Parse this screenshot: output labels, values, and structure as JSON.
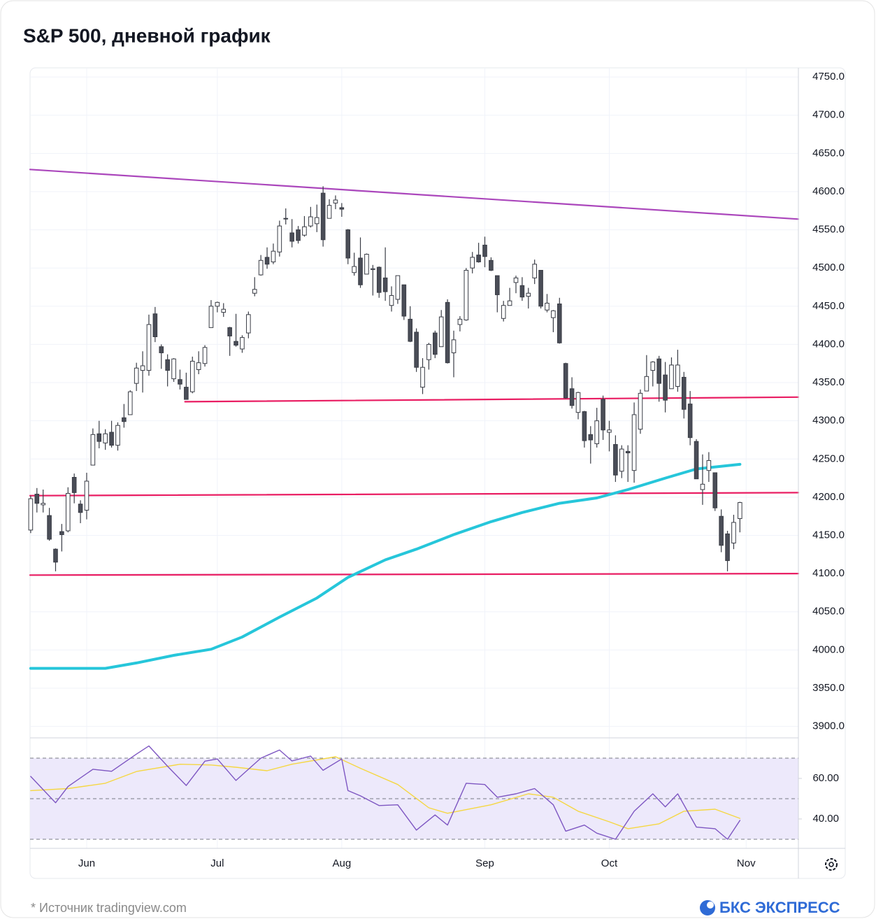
{
  "chart_data": {
    "type": "candlestick",
    "title": "S&P 500, дневной график",
    "source": "*  Источник tradingview.com",
    "brand": "БКС ЭКСПРЕСС",
    "xlim": [
      -0.1,
      123.4
    ],
    "xticks": [
      {
        "value": 9,
        "label": "Jun"
      },
      {
        "value": 30,
        "label": "Jul"
      },
      {
        "value": 50,
        "label": "Aug"
      },
      {
        "value": 73,
        "label": "Sep"
      },
      {
        "value": 93,
        "label": "Oct"
      },
      {
        "value": 115,
        "label": "Nov"
      }
    ],
    "ylim": [
      3885,
      4762
    ],
    "yticks": [
      {
        "value": 3900,
        "label": "3900.0"
      },
      {
        "value": 3950,
        "label": "3950.0"
      },
      {
        "value": 4000,
        "label": "4000.0"
      },
      {
        "value": 4050,
        "label": "4050.0"
      },
      {
        "value": 4100,
        "label": "4100.0"
      },
      {
        "value": 4150,
        "label": "4150.0"
      },
      {
        "value": 4200,
        "label": "4200.0"
      },
      {
        "value": 4250,
        "label": "4250.0"
      },
      {
        "value": 4300,
        "label": "4300.0"
      },
      {
        "value": 4350,
        "label": "4350.0"
      },
      {
        "value": 4400,
        "label": "4400.0"
      },
      {
        "value": 4450,
        "label": "4450.0"
      },
      {
        "value": 4500,
        "label": "4500.0"
      },
      {
        "value": 4550,
        "label": "4550.0"
      },
      {
        "value": 4600,
        "label": "4600.0"
      },
      {
        "value": 4650,
        "label": "4650.0"
      },
      {
        "value": 4700,
        "label": "4700.0"
      },
      {
        "value": 4750,
        "label": "4750.0"
      }
    ],
    "grid": true,
    "up_color": "#ffffff",
    "down_color": "#4a4d57",
    "outline_color": "#3a3d46",
    "ohlc": [
      [
        4157,
        4202,
        4153,
        4198
      ],
      [
        4204,
        4212,
        4180,
        4192
      ],
      [
        4190,
        4210,
        4180,
        4192
      ],
      [
        4176,
        4186,
        4143,
        4145
      ],
      [
        4132,
        4133,
        4103,
        4115
      ],
      [
        4155,
        4165,
        4129,
        4151
      ],
      [
        4156,
        4213,
        4154,
        4205
      ],
      [
        4226,
        4231,
        4192,
        4206
      ],
      [
        4191,
        4196,
        4166,
        4180
      ],
      [
        4183,
        4232,
        4171,
        4221
      ],
      [
        4242,
        4290,
        4242,
        4282
      ],
      [
        4283,
        4300,
        4264,
        4273
      ],
      [
        4271,
        4289,
        4262,
        4283
      ],
      [
        4285,
        4300,
        4265,
        4268
      ],
      [
        4268,
        4298,
        4261,
        4294
      ],
      [
        4304,
        4322,
        4291,
        4299
      ],
      [
        4308,
        4340,
        4308,
        4338
      ],
      [
        4349,
        4376,
        4339,
        4369
      ],
      [
        4366,
        4391,
        4337,
        4372
      ],
      [
        4366,
        4439,
        4359,
        4426
      ],
      [
        4440,
        4449,
        4403,
        4410
      ],
      [
        4397,
        4400,
        4368,
        4389
      ],
      [
        4380,
        4387,
        4345,
        4366
      ],
      [
        4355,
        4382,
        4351,
        4381
      ],
      [
        4354,
        4367,
        4341,
        4348
      ],
      [
        4344,
        4363,
        4328,
        4328
      ],
      [
        4338,
        4384,
        4336,
        4378
      ],
      [
        4367,
        4391,
        4361,
        4376
      ],
      [
        4375,
        4399,
        4371,
        4396
      ],
      [
        4422,
        4458,
        4422,
        4450
      ],
      [
        4450,
        4456,
        4442,
        4455
      ],
      [
        4442,
        4454,
        4436,
        4446
      ],
      [
        4422,
        4423,
        4385,
        4411
      ],
      [
        4404,
        4440,
        4397,
        4399
      ],
      [
        4394,
        4412,
        4389,
        4409
      ],
      [
        4415,
        4443,
        4408,
        4439
      ],
      [
        4467,
        4488,
        4463,
        4472
      ],
      [
        4491,
        4517,
        4490,
        4510
      ],
      [
        4514,
        4527,
        4499,
        4505
      ],
      [
        4508,
        4532,
        4505,
        4522
      ],
      [
        4521,
        4562,
        4515,
        4555
      ],
      [
        4565,
        4578,
        4557,
        4565
      ],
      [
        4546,
        4564,
        4527,
        4535
      ],
      [
        4550,
        4555,
        4532,
        4536
      ],
      [
        4543,
        4568,
        4541,
        4554
      ],
      [
        4555,
        4580,
        4553,
        4567
      ],
      [
        4558,
        4583,
        4547,
        4566
      ],
      [
        4598,
        4607,
        4528,
        4537
      ],
      [
        4565,
        4590,
        4565,
        4582
      ],
      [
        4585,
        4595,
        4577,
        4589
      ],
      [
        4579,
        4585,
        4567,
        4577
      ],
      [
        4550,
        4551,
        4505,
        4513
      ],
      [
        4494,
        4520,
        4490,
        4502
      ],
      [
        4513,
        4540,
        4474,
        4478
      ],
      [
        4492,
        4519,
        4492,
        4518
      ],
      [
        4498,
        4504,
        4464,
        4499
      ],
      [
        4501,
        4502,
        4461,
        4468
      ],
      [
        4487,
        4527,
        4457,
        4469
      ],
      [
        4451,
        4476,
        4443,
        4464
      ],
      [
        4459,
        4490,
        4453,
        4490
      ],
      [
        4478,
        4478,
        4432,
        4437
      ],
      [
        4433,
        4450,
        4403,
        4404
      ],
      [
        4416,
        4421,
        4364,
        4370
      ],
      [
        4344,
        4382,
        4335,
        4370
      ],
      [
        4380,
        4402,
        4367,
        4400
      ],
      [
        4415,
        4418,
        4382,
        4387
      ],
      [
        4397,
        4445,
        4397,
        4436
      ],
      [
        4455,
        4459,
        4375,
        4376
      ],
      [
        4389,
        4418,
        4357,
        4406
      ],
      [
        4426,
        4437,
        4417,
        4433
      ],
      [
        4432,
        4500,
        4431,
        4497
      ],
      [
        4500,
        4521,
        4493,
        4514
      ],
      [
        4517,
        4533,
        4507,
        4508
      ],
      [
        4530,
        4541,
        4501,
        4515
      ],
      [
        4510,
        4514,
        4496,
        4497
      ],
      [
        4490,
        4490,
        4442,
        4465
      ],
      [
        4434,
        4457,
        4430,
        4451
      ],
      [
        4451,
        4474,
        4451,
        4457
      ],
      [
        4481,
        4490,
        4467,
        4487
      ],
      [
        4477,
        4488,
        4457,
        4462
      ],
      [
        4463,
        4474,
        4447,
        4467
      ],
      [
        4487,
        4511,
        4479,
        4505
      ],
      [
        4497,
        4497,
        4447,
        4450
      ],
      [
        4445,
        4466,
        4442,
        4454
      ],
      [
        4435,
        4445,
        4416,
        4444
      ],
      [
        4453,
        4461,
        4401,
        4402
      ],
      [
        4375,
        4376,
        4329,
        4330
      ],
      [
        4342,
        4357,
        4316,
        4320
      ],
      [
        4311,
        4338,
        4302,
        4337
      ],
      [
        4312,
        4313,
        4265,
        4274
      ],
      [
        4282,
        4293,
        4244,
        4275
      ],
      [
        4270,
        4317,
        4265,
        4300
      ],
      [
        4328,
        4333,
        4275,
        4288
      ],
      [
        4285,
        4300,
        4260,
        4288
      ],
      [
        4269,
        4281,
        4220,
        4229
      ],
      [
        4234,
        4268,
        4225,
        4263
      ],
      [
        4260,
        4268,
        4220,
        4258
      ],
      [
        4235,
        4324,
        4219,
        4308
      ],
      [
        4289,
        4341,
        4283,
        4336
      ],
      [
        4339,
        4386,
        4339,
        4358
      ],
      [
        4366,
        4378,
        4345,
        4377
      ],
      [
        4381,
        4385,
        4325,
        4349
      ],
      [
        4360,
        4377,
        4311,
        4327
      ],
      [
        4342,
        4383,
        4342,
        4373
      ],
      [
        4345,
        4393,
        4338,
        4373
      ],
      [
        4357,
        4364,
        4303,
        4315
      ],
      [
        4322,
        4339,
        4268,
        4278
      ],
      [
        4273,
        4276,
        4224,
        4224
      ],
      [
        4210,
        4256,
        4190,
        4217
      ],
      [
        4235,
        4259,
        4220,
        4248
      ],
      [
        4232,
        4232,
        4182,
        4186
      ],
      [
        4175,
        4184,
        4128,
        4137
      ],
      [
        4152,
        4156,
        4103,
        4117
      ],
      [
        4140,
        4177,
        4132,
        4167
      ],
      [
        4172,
        4194,
        4154,
        4193
      ]
    ],
    "overlays": [
      {
        "color": "#26c6da",
        "width": 4,
        "x": [
          0,
          9,
          12,
          17,
          23,
          29,
          34,
          40,
          46,
          51,
          57,
          62,
          68,
          74,
          79,
          85,
          91,
          96,
          102,
          107,
          114
        ],
        "values": [
          3976,
          3976,
          3976,
          3983,
          3993,
          4001,
          4017,
          4043,
          4068,
          4095,
          4118,
          4132,
          4151,
          4168,
          4180,
          4192,
          4199,
          4210,
          4225,
          4237,
          4243
        ]
      }
    ],
    "trendlines": [
      {
        "color": "#ab47bc",
        "x": [
          -0.1,
          123.4
        ],
        "values": [
          4629,
          4564
        ]
      },
      {
        "color": "#e91e63",
        "x": [
          24.8,
          123.4
        ],
        "values": [
          4325,
          4331
        ]
      },
      {
        "color": "#e91e63",
        "x": [
          -0.1,
          123.4
        ],
        "values": [
          4202,
          4206
        ]
      },
      {
        "color": "#e91e63",
        "x": [
          -0.1,
          123.4
        ],
        "values": [
          4098,
          4100
        ]
      }
    ],
    "rsi": {
      "ylim": [
        25.5,
        80
      ],
      "yticks": [
        {
          "value": 60,
          "label": "60.00"
        },
        {
          "value": 40,
          "label": "40.00"
        }
      ],
      "bands": [
        70,
        50,
        30
      ],
      "band_color": "#ede9fb",
      "band_line_color": "#787b86",
      "line": {
        "color": "#7e57c2",
        "x": [
          0,
          4,
          6,
          10,
          13,
          17,
          19,
          22,
          25,
          28,
          30,
          33,
          37,
          40,
          42,
          45,
          47,
          50,
          51,
          53,
          56,
          59,
          62,
          65,
          67,
          70,
          73,
          75,
          78,
          81,
          84,
          86,
          89,
          91,
          94,
          97,
          100,
          102,
          104,
          107,
          110,
          112,
          114
        ],
        "values": [
          61,
          48,
          56,
          64.5,
          63.5,
          72,
          76,
          66,
          56.5,
          68.5,
          69.6,
          59,
          70,
          74,
          68.6,
          71,
          64,
          69.6,
          54,
          51.4,
          46.6,
          47,
          34.5,
          42,
          37,
          57.6,
          57,
          50.7,
          52.4,
          55,
          47,
          34,
          37,
          33,
          30,
          43.8,
          52.4,
          46,
          52.4,
          36,
          35.2,
          30,
          39.3
        ]
      },
      "ma": {
        "color": "#f5d742",
        "x": [
          0,
          6,
          12,
          17,
          24,
          29,
          33,
          38,
          42,
          49,
          53,
          59,
          64,
          67,
          74,
          80,
          84,
          88,
          93,
          96,
          101,
          105,
          110,
          114
        ],
        "values": [
          54,
          55,
          57.6,
          63.4,
          67,
          66.6,
          65.5,
          63.8,
          67,
          70.7,
          65,
          57,
          45.5,
          42.8,
          47,
          52.4,
          50.7,
          43.8,
          38.6,
          35.2,
          37.6,
          43.8,
          44.8,
          40.3
        ]
      }
    }
  }
}
